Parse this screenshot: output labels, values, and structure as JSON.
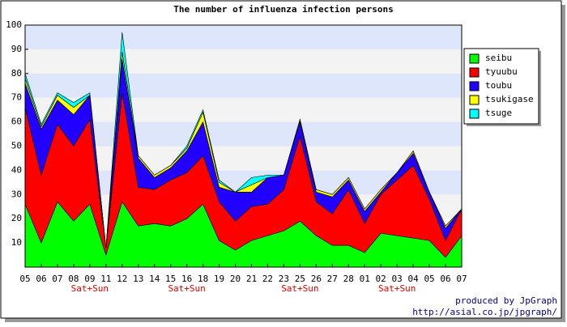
{
  "chart_data": {
    "type": "stacked_area",
    "title": "The number of influenza infection persons",
    "categories": [
      "05",
      "06",
      "07",
      "08",
      "09",
      "11",
      "12",
      "13",
      "14",
      "15",
      "16",
      "18",
      "19",
      "20",
      "21",
      "22",
      "23",
      "25",
      "26",
      "27",
      "28",
      "01",
      "02",
      "03",
      "04",
      "05",
      "06",
      "07"
    ],
    "x_sublabels": [
      null,
      null,
      null,
      null,
      "Sat+Sun",
      null,
      null,
      null,
      null,
      null,
      "Sat+Sun",
      null,
      null,
      null,
      null,
      null,
      null,
      "Sat+Sun",
      null,
      null,
      null,
      null,
      null,
      "Sat+Sun",
      null,
      null,
      null,
      null
    ],
    "series": [
      {
        "name": "seibu",
        "color": "#00ff00",
        "values": [
          26,
          10,
          27,
          19,
          26,
          5,
          27,
          17,
          18,
          17,
          20,
          26,
          11,
          7,
          11,
          13,
          15,
          19,
          13,
          9,
          9,
          6,
          14,
          13,
          12,
          11,
          4,
          13
        ]
      },
      {
        "name": "tyuubu",
        "color": "#ff0000",
        "values": [
          40,
          28,
          32,
          31,
          35,
          3,
          45,
          16,
          14,
          19,
          19,
          20,
          16,
          12,
          14,
          13,
          17,
          35,
          14,
          13,
          23,
          12,
          16,
          23,
          30,
          17,
          7,
          11
        ]
      },
      {
        "name": "toubu",
        "color": "#2200ff",
        "values": [
          10,
          19,
          10,
          13,
          10,
          0,
          14,
          12,
          5,
          5,
          9,
          14,
          6,
          12,
          6,
          11,
          6,
          6,
          4,
          7,
          4,
          5,
          1,
          3,
          5,
          3,
          5,
          0
        ]
      },
      {
        "name": "tsukigase",
        "color": "#ffff00",
        "values": [
          2,
          1,
          2,
          3,
          0,
          0,
          3,
          1,
          1,
          1,
          1,
          4,
          2,
          0,
          3,
          0,
          0,
          1,
          1,
          1,
          1,
          1,
          1,
          0,
          1,
          0,
          1,
          0
        ]
      },
      {
        "name": "tsuge",
        "color": "#00ffff",
        "values": [
          2,
          1,
          1,
          2,
          1,
          0,
          8,
          0,
          0,
          0,
          1,
          1,
          1,
          0,
          3,
          1,
          0,
          0,
          0,
          0,
          0,
          0,
          0,
          0,
          0,
          0,
          0,
          0
        ]
      }
    ],
    "ylim": [
      0,
      100
    ],
    "yticks": [
      10,
      20,
      30,
      40,
      50,
      60,
      70,
      80,
      90,
      100
    ],
    "grid_bands": [
      "#ffffff",
      "#f3f3f3",
      "#dde6fa"
    ],
    "legend": "right",
    "credits": [
      "produced by JpGraph",
      "http://asial.co.jp/jpgraph/"
    ]
  }
}
